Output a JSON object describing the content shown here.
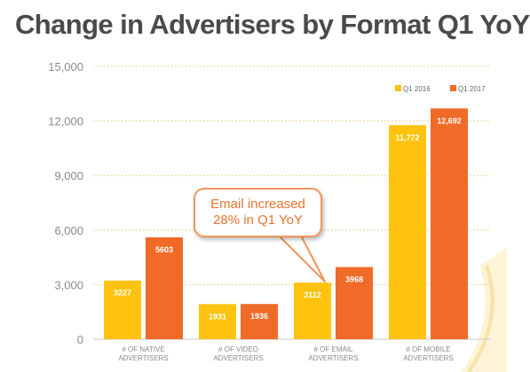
{
  "title": "Change in Advertisers by Format Q1 YoY",
  "callout": {
    "line1": "Email increased",
    "line2": "28% in Q1 YoY"
  },
  "colors": {
    "series_2016": "#ffc20e",
    "series_2017": "#f06b28",
    "grid": "#e5c870",
    "axis_text": "#8a8a8a",
    "title": "#4a4a4a",
    "callout_border": "#f0955a",
    "callout_text": "#e8742f"
  },
  "chart_data": {
    "type": "bar",
    "title": "Change in Advertisers by Format Q1 YoY",
    "categories": [
      [
        "# OF NATIVE",
        "ADVERTISERS"
      ],
      [
        "# OF VIDEO",
        "ADVERTISERS"
      ],
      [
        "# OF EMAIL",
        "ADVERTISERS"
      ],
      [
        "# OF MOBILE",
        "ADVERTISERS"
      ]
    ],
    "series": [
      {
        "name": "Q1 2016",
        "values": [
          3227,
          1931,
          3112,
          11772
        ],
        "labels": [
          "3227",
          "1931",
          "3112",
          "11,772"
        ]
      },
      {
        "name": "Q1 2017",
        "values": [
          5603,
          1936,
          3968,
          12692
        ],
        "labels": [
          "5603",
          "1936",
          "3968",
          "12,692"
        ]
      }
    ],
    "yticks": [
      "0",
      "3,000",
      "6,000",
      "9,000",
      "12,000",
      "15,000"
    ],
    "ytick_values": [
      0,
      3000,
      6000,
      9000,
      12000,
      15000
    ],
    "ylim": [
      0,
      15000
    ],
    "xlabel": "",
    "ylabel": "",
    "grid": true,
    "grid_style": "dotted",
    "legend_position": "top-right"
  }
}
